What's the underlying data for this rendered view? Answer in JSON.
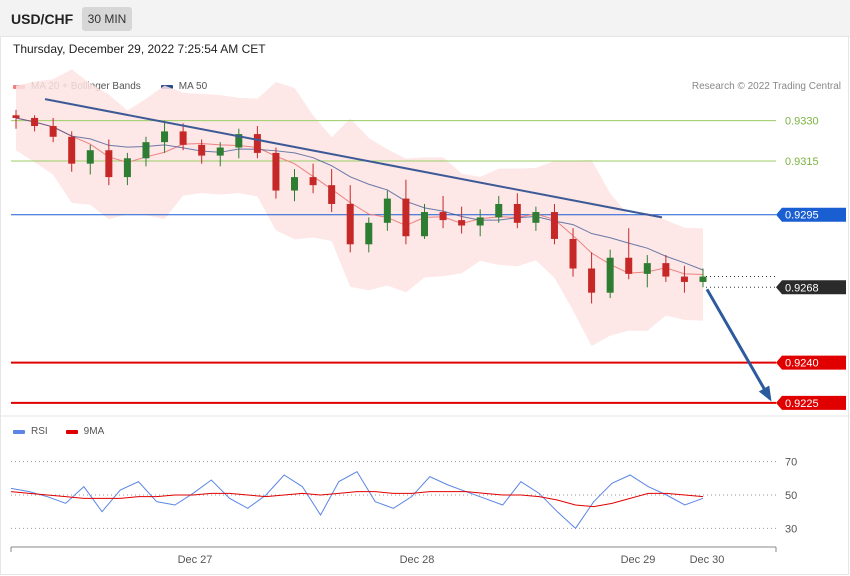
{
  "header": {
    "symbol": "USD/CHF",
    "timeframe": "30 MIN"
  },
  "timestamp": "Thursday, December 29, 2022 7:25:54 AM CET",
  "legend": {
    "ma20": {
      "label": "MA 20 + Bollinger Bands",
      "color": "#f08080"
    },
    "ma50": {
      "label": "MA 50",
      "color": "#2b4a8b"
    },
    "rsi": {
      "label": "RSI",
      "color": "#5b86e5"
    },
    "rsi_ma": {
      "label": "9MA",
      "color": "#e00000"
    }
  },
  "credit": "Research © 2022 Trading Central",
  "colors": {
    "up": "#2e7d32",
    "down": "#c62828",
    "band": "#fde3e3",
    "resistance": "#9ccc65",
    "pivot": "#1a5fd1",
    "support": "#e00000",
    "arrow": "#2c5a9e",
    "trend": "#3d5a96"
  },
  "chart_data": [
    {
      "type": "line",
      "subtype": "candlestick",
      "ylim": [
        0.92205,
        0.93414
      ],
      "x_ticks": [
        "Dec 27",
        "Dec 28",
        "Dec 29",
        "Dec 30"
      ],
      "levels": [
        {
          "label": "0.9330",
          "value": 0.933,
          "kind": "resistance"
        },
        {
          "label": "0.9315",
          "value": 0.9315,
          "kind": "resistance"
        },
        {
          "label": "0.9295",
          "value": 0.9295,
          "kind": "pivot"
        },
        {
          "label": "0.9268",
          "value": 0.9268,
          "kind": "last"
        },
        {
          "label": "0.9240",
          "value": 0.924,
          "kind": "support"
        },
        {
          "label": "0.9225",
          "value": 0.9225,
          "kind": "support"
        }
      ],
      "scenario_arrow": {
        "from": 0.9268,
        "to": 0.9225
      },
      "trendline": {
        "from": 0.9338,
        "to": 0.9294
      },
      "candles_sampled": [
        [
          0.9332,
          0.9334,
          0.9327,
          0.9331
        ],
        [
          0.9331,
          0.9332,
          0.9326,
          0.9328
        ],
        [
          0.9328,
          0.9331,
          0.9322,
          0.9324
        ],
        [
          0.9324,
          0.9326,
          0.9311,
          0.9314
        ],
        [
          0.9314,
          0.9321,
          0.931,
          0.9319
        ],
        [
          0.9319,
          0.9323,
          0.9306,
          0.9309
        ],
        [
          0.9309,
          0.9318,
          0.9306,
          0.9316
        ],
        [
          0.9316,
          0.9324,
          0.9313,
          0.9322
        ],
        [
          0.9322,
          0.933,
          0.9318,
          0.9326
        ],
        [
          0.9326,
          0.9329,
          0.9319,
          0.9321
        ],
        [
          0.9321,
          0.9323,
          0.9314,
          0.9317
        ],
        [
          0.9317,
          0.9322,
          0.9313,
          0.932
        ],
        [
          0.932,
          0.9327,
          0.9316,
          0.9325
        ],
        [
          0.9325,
          0.9328,
          0.9316,
          0.9318
        ],
        [
          0.9318,
          0.932,
          0.9301,
          0.9304
        ],
        [
          0.9304,
          0.9312,
          0.93,
          0.9309
        ],
        [
          0.9309,
          0.9314,
          0.9303,
          0.9306
        ],
        [
          0.9306,
          0.9312,
          0.9296,
          0.9299
        ],
        [
          0.9299,
          0.9306,
          0.9281,
          0.9284
        ],
        [
          0.9284,
          0.9294,
          0.9281,
          0.9292
        ],
        [
          0.9292,
          0.9304,
          0.9289,
          0.9301
        ],
        [
          0.9301,
          0.9308,
          0.9284,
          0.9287
        ],
        [
          0.9287,
          0.9299,
          0.9286,
          0.9296
        ],
        [
          0.9296,
          0.9302,
          0.929,
          0.9293
        ],
        [
          0.9293,
          0.9298,
          0.9288,
          0.9291
        ],
        [
          0.9291,
          0.9297,
          0.9287,
          0.9294
        ],
        [
          0.9294,
          0.9302,
          0.9292,
          0.9299
        ],
        [
          0.9299,
          0.9303,
          0.929,
          0.9292
        ],
        [
          0.9292,
          0.9298,
          0.9289,
          0.9296
        ],
        [
          0.9296,
          0.9299,
          0.9284,
          0.9286
        ],
        [
          0.9286,
          0.929,
          0.9272,
          0.9275
        ],
        [
          0.9275,
          0.9281,
          0.9262,
          0.9266
        ],
        [
          0.9266,
          0.9282,
          0.9264,
          0.9279
        ],
        [
          0.9279,
          0.929,
          0.9271,
          0.9273
        ],
        [
          0.9273,
          0.928,
          0.9268,
          0.9277
        ],
        [
          0.9277,
          0.928,
          0.927,
          0.9272
        ],
        [
          0.9272,
          0.9276,
          0.9266,
          0.927
        ],
        [
          0.927,
          0.9275,
          0.9268,
          0.9272
        ]
      ]
    },
    {
      "type": "line",
      "ylim": [
        20,
        80
      ],
      "y_ticks": [
        "70",
        "50",
        "30"
      ],
      "series": [
        {
          "name": "RSI",
          "values": [
            54,
            52,
            49,
            45,
            55,
            40,
            53,
            58,
            46,
            44,
            51,
            59,
            48,
            42,
            50,
            62,
            55,
            38,
            58,
            64,
            46,
            42,
            49,
            61,
            56,
            52,
            48,
            44,
            58,
            51,
            40,
            30,
            46,
            57,
            62,
            55,
            50,
            44,
            48
          ]
        },
        {
          "name": "9MA",
          "values": [
            52,
            51,
            50,
            49,
            48,
            48,
            48,
            49,
            49,
            50,
            50,
            51,
            51,
            50,
            49,
            50,
            51,
            50,
            51,
            52,
            52,
            51,
            51,
            52,
            52,
            52,
            51,
            50,
            50,
            49,
            47,
            44,
            43,
            45,
            48,
            51,
            51,
            50,
            49
          ]
        }
      ]
    }
  ]
}
